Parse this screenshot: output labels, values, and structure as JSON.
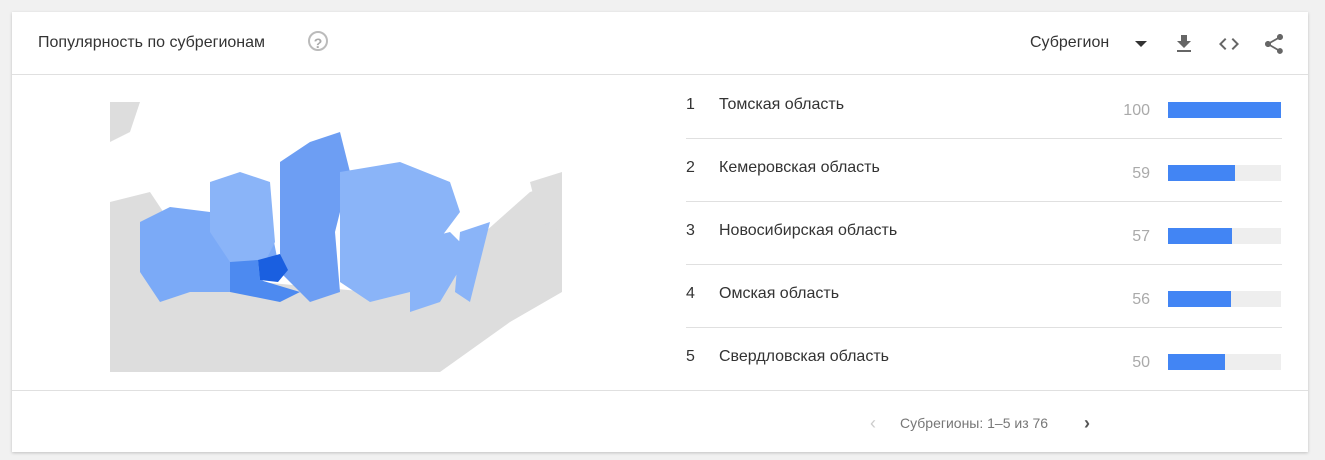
{
  "header": {
    "title": "Популярность по субрегионам",
    "help_icon": "help-circle-icon",
    "resolution": "Субрегион"
  },
  "colors": {
    "accent": "#4285f4",
    "highlight": "#1a5fe0"
  },
  "rows": [
    {
      "rank": "1",
      "name": "Томская область",
      "value": "100",
      "level": 100
    },
    {
      "rank": "2",
      "name": "Кемеровская область",
      "value": "59",
      "level": 59
    },
    {
      "rank": "3",
      "name": "Новосибирская область",
      "value": "57",
      "level": 57
    },
    {
      "rank": "4",
      "name": "Омская область",
      "value": "56",
      "level": 56
    },
    {
      "rank": "5",
      "name": "Свердловская область",
      "value": "50",
      "level": 50
    }
  ],
  "footer": {
    "pagination": "Субрегионы: 1–5 из 76"
  }
}
